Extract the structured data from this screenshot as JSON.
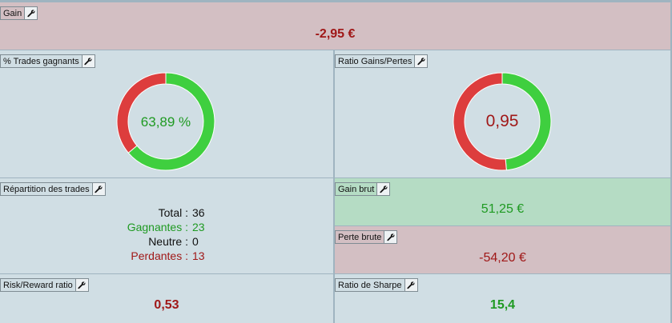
{
  "colors": {
    "panel_blue": "#d0dee4",
    "panel_red": "#d3bfc3",
    "panel_green": "#b5dcc4",
    "value_red": "#a01818",
    "value_green": "#1f9a22",
    "donut_green": "#3fcf3f",
    "donut_red": "#dd3d3d"
  },
  "gain": {
    "label": "Gain",
    "value": "-2,95 €",
    "icon": "wrench-icon"
  },
  "win_pct": {
    "label": "% Trades gagnants",
    "value_text": "63,89 %",
    "win_fraction": 0.6389,
    "icon": "wrench-icon"
  },
  "ratio": {
    "label": "Ratio Gains/Pertes",
    "value_text": "0,95",
    "gain_fraction": 0.4861,
    "icon": "wrench-icon"
  },
  "repartition": {
    "label": "Répartition des trades",
    "rows": [
      {
        "key": "Total :",
        "value": "36",
        "color": "#111111"
      },
      {
        "key": "Gagnantes :",
        "value": "23",
        "color": "#1f9a22"
      },
      {
        "key": "Neutre :",
        "value": "0",
        "color": "#111111"
      },
      {
        "key": "Perdantes :",
        "value": "13",
        "color": "#a01818"
      }
    ],
    "icon": "wrench-icon"
  },
  "gain_brut": {
    "label": "Gain brut",
    "value": "51,25 €",
    "icon": "wrench-icon"
  },
  "perte_brute": {
    "label": "Perte brute",
    "value": "-54,20 €",
    "icon": "wrench-icon"
  },
  "risk_reward": {
    "label": "Risk/Reward ratio",
    "value": "0,53",
    "icon": "wrench-icon"
  },
  "sharpe": {
    "label": "Ratio de Sharpe",
    "value": "15,4",
    "icon": "wrench-icon"
  }
}
